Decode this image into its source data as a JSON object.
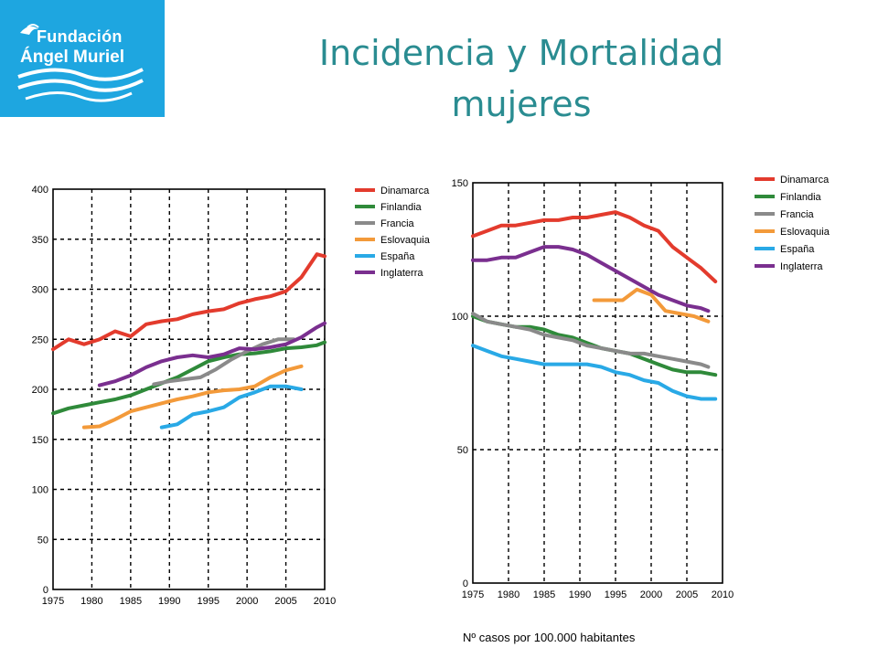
{
  "logo": {
    "line1": "Fundación",
    "line2": "Ángel Muriel"
  },
  "title": {
    "line1": "Incidencia y Mortalidad",
    "line2": "mujeres"
  },
  "footnote": "Nº casos por 100.000 habitantes",
  "colors": {
    "Dinamarca": "#e33b2d",
    "Finlandia": "#2f8a3a",
    "Francia": "#8a8a8a",
    "Eslovaquia": "#f39a3a",
    "España": "#29a9e6",
    "Inglaterra": "#7a2f8f"
  },
  "chart_data": [
    {
      "type": "line",
      "id": "incidencia",
      "xlim": [
        1975,
        2010
      ],
      "ylim": [
        0,
        400
      ],
      "xticks": [
        1975,
        1980,
        1985,
        1990,
        1995,
        2000,
        2005,
        2010
      ],
      "yticks": [
        0,
        50,
        100,
        150,
        200,
        250,
        300,
        350,
        400
      ],
      "grid": true,
      "legend": "top-right",
      "series": [
        {
          "name": "Dinamarca",
          "x": [
            1975,
            1977,
            1979,
            1981,
            1983,
            1985,
            1987,
            1989,
            1991,
            1993,
            1995,
            1997,
            1999,
            2001,
            2003,
            2005,
            2007,
            2009,
            2010
          ],
          "y": [
            240,
            250,
            245,
            250,
            258,
            253,
            265,
            268,
            270,
            275,
            278,
            280,
            286,
            290,
            293,
            298,
            312,
            335,
            333
          ]
        },
        {
          "name": "Finlandia",
          "x": [
            1975,
            1977,
            1979,
            1981,
            1983,
            1985,
            1987,
            1989,
            1991,
            1993,
            1995,
            1997,
            1999,
            2001,
            2003,
            2005,
            2007,
            2009,
            2010
          ],
          "y": [
            176,
            181,
            184,
            187,
            190,
            194,
            200,
            206,
            212,
            220,
            228,
            232,
            235,
            236,
            238,
            241,
            242,
            244,
            247
          ]
        },
        {
          "name": "Francia",
          "x": [
            1988,
            1990,
            1992,
            1994,
            1996,
            1998,
            2000,
            2002,
            2004,
            2006
          ],
          "y": [
            205,
            208,
            210,
            212,
            220,
            230,
            238,
            245,
            250,
            250
          ]
        },
        {
          "name": "Eslovaquia",
          "x": [
            1979,
            1981,
            1983,
            1985,
            1987,
            1989,
            1991,
            1993,
            1995,
            1997,
            1999,
            2001,
            2003,
            2005,
            2007
          ],
          "y": [
            162,
            163,
            170,
            178,
            182,
            186,
            190,
            193,
            197,
            199,
            200,
            203,
            212,
            219,
            223
          ]
        },
        {
          "name": "España",
          "x": [
            1989,
            1991,
            1993,
            1995,
            1997,
            1999,
            2001,
            2003,
            2005,
            2007
          ],
          "y": [
            162,
            165,
            175,
            178,
            182,
            192,
            197,
            203,
            203,
            200
          ]
        },
        {
          "name": "Inglaterra",
          "x": [
            1981,
            1983,
            1985,
            1987,
            1989,
            1991,
            1993,
            1995,
            1997,
            1999,
            2001,
            2003,
            2005,
            2007,
            2009,
            2010
          ],
          "y": [
            204,
            208,
            214,
            222,
            228,
            232,
            234,
            232,
            235,
            241,
            240,
            242,
            245,
            252,
            262,
            266
          ]
        }
      ]
    },
    {
      "type": "line",
      "id": "mortalidad",
      "xlim": [
        1975,
        2010
      ],
      "ylim": [
        0,
        150
      ],
      "xticks": [
        1975,
        1980,
        1985,
        1990,
        1995,
        2000,
        2005,
        2010
      ],
      "yticks": [
        0,
        50,
        100,
        150
      ],
      "grid": true,
      "legend": "top-right",
      "series": [
        {
          "name": "Dinamarca",
          "x": [
            1975,
            1977,
            1979,
            1981,
            1983,
            1985,
            1987,
            1989,
            1991,
            1993,
            1995,
            1997,
            1999,
            2001,
            2003,
            2005,
            2007,
            2009
          ],
          "y": [
            130,
            132,
            134,
            134,
            135,
            136,
            136,
            137,
            137,
            138,
            139,
            137,
            134,
            132,
            126,
            122,
            118,
            113
          ]
        },
        {
          "name": "Finlandia",
          "x": [
            1975,
            1977,
            1979,
            1981,
            1983,
            1985,
            1987,
            1989,
            1991,
            1993,
            1995,
            1997,
            1999,
            2001,
            2003,
            2005,
            2007,
            2009
          ],
          "y": [
            100,
            98,
            97,
            96,
            96,
            95,
            93,
            92,
            90,
            88,
            87,
            86,
            84,
            82,
            80,
            79,
            79,
            78
          ]
        },
        {
          "name": "Francia",
          "x": [
            1975,
            1977,
            1979,
            1981,
            1983,
            1985,
            1987,
            1989,
            1991,
            1993,
            1995,
            1997,
            1999,
            2001,
            2003,
            2005,
            2007,
            2008
          ],
          "y": [
            101,
            98,
            97,
            96,
            95,
            93,
            92,
            91,
            89,
            88,
            87,
            86,
            86,
            85,
            84,
            83,
            82,
            81
          ]
        },
        {
          "name": "Eslovaquia",
          "x": [
            1992,
            1994,
            1996,
            1998,
            2000,
            2002,
            2004,
            2006,
            2008
          ],
          "y": [
            106,
            106,
            106,
            110,
            108,
            102,
            101,
            100,
            98
          ]
        },
        {
          "name": "España",
          "x": [
            1975,
            1977,
            1979,
            1981,
            1983,
            1985,
            1987,
            1989,
            1991,
            1993,
            1995,
            1997,
            1999,
            2001,
            2003,
            2005,
            2007,
            2009
          ],
          "y": [
            89,
            87,
            85,
            84,
            83,
            82,
            82,
            82,
            82,
            81,
            79,
            78,
            76,
            75,
            72,
            70,
            69,
            69
          ]
        },
        {
          "name": "Inglaterra",
          "x": [
            1975,
            1977,
            1979,
            1981,
            1983,
            1985,
            1987,
            1989,
            1991,
            1993,
            1995,
            1997,
            1999,
            2001,
            2003,
            2005,
            2007,
            2008
          ],
          "y": [
            121,
            121,
            122,
            122,
            124,
            126,
            126,
            125,
            123,
            120,
            117,
            114,
            111,
            108,
            106,
            104,
            103,
            102
          ]
        }
      ]
    }
  ]
}
